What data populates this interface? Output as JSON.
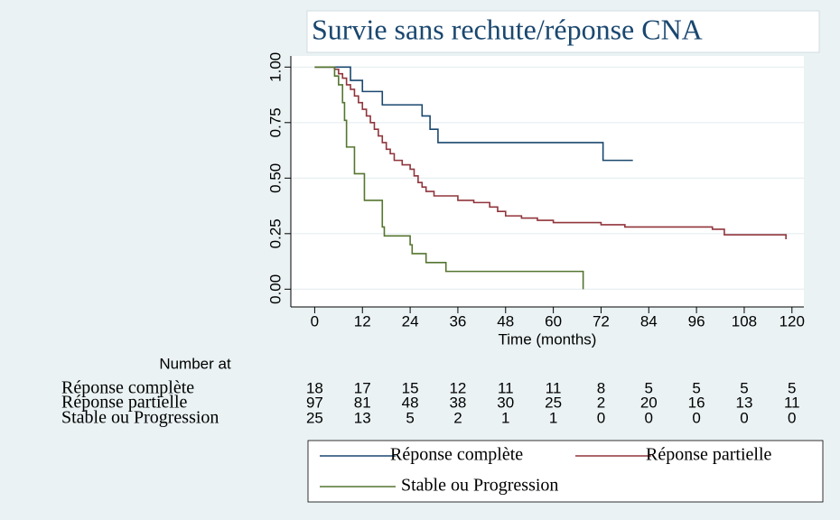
{
  "chart_data": {
    "type": "step",
    "title": "Survie sans rechute/réponse CNA",
    "xlabel": "Time (months)",
    "xlim": [
      -6,
      123
    ],
    "ylim": [
      -0.08,
      1.05
    ],
    "xticks": [
      0,
      12,
      24,
      36,
      48,
      60,
      72,
      84,
      96,
      108,
      120
    ],
    "yticks": [
      {
        "value": 0,
        "label": "0.00"
      },
      {
        "value": 0.25,
        "label": "0.25"
      },
      {
        "value": 0.5,
        "label": "0.50"
      },
      {
        "value": 0.75,
        "label": "0.75"
      },
      {
        "value": 1,
        "label": "1.00"
      }
    ],
    "grid": true,
    "series": [
      {
        "name": "Réponse complète",
        "color": "#1a476f",
        "x": [
          0,
          9,
          12,
          17,
          27,
          29,
          31,
          72.5,
          80
        ],
        "values": [
          1,
          0.94,
          0.89,
          0.83,
          0.78,
          0.72,
          0.66,
          0.58,
          0.58
        ]
      },
      {
        "name": "Réponse partielle",
        "color": "#90353b",
        "x": [
          0,
          5,
          6,
          7,
          8,
          9,
          10,
          11,
          12,
          13,
          14,
          15,
          16,
          17,
          18,
          19,
          20,
          22,
          24,
          25,
          26,
          27,
          28,
          30,
          36,
          40,
          44,
          46,
          48,
          52,
          56,
          60,
          72,
          78,
          100,
          103,
          118.5
        ],
        "values": [
          1,
          0.99,
          0.97,
          0.95,
          0.92,
          0.9,
          0.87,
          0.84,
          0.81,
          0.78,
          0.75,
          0.72,
          0.69,
          0.66,
          0.63,
          0.61,
          0.58,
          0.56,
          0.54,
          0.51,
          0.48,
          0.46,
          0.44,
          0.42,
          0.4,
          0.39,
          0.37,
          0.35,
          0.33,
          0.32,
          0.31,
          0.3,
          0.29,
          0.28,
          0.27,
          0.245,
          0.225
        ]
      },
      {
        "name": "Stable ou Progression",
        "color": "#55752f",
        "x": [
          0,
          5,
          6,
          7,
          7.5,
          8,
          10,
          12.5,
          17,
          17.5,
          24,
          24.5,
          28,
          33,
          67.5
        ],
        "values": [
          1,
          0.96,
          0.92,
          0.84,
          0.76,
          0.64,
          0.52,
          0.4,
          0.28,
          0.24,
          0.2,
          0.16,
          0.12,
          0.08,
          0
        ]
      }
    ],
    "risk_table": {
      "title": "Number at",
      "rows": [
        {
          "name": "Réponse complète",
          "values": [
            18,
            17,
            15,
            12,
            11,
            11,
            8,
            5,
            5,
            5,
            5
          ]
        },
        {
          "name": "Réponse  partielle",
          "values": [
            97,
            81,
            48,
            38,
            30,
            25,
            2,
            20,
            16,
            13,
            11
          ]
        },
        {
          "name": "Stable ou Progression",
          "values": [
            25,
            13,
            5,
            2,
            1,
            1,
            0,
            0,
            0,
            0,
            0
          ]
        }
      ]
    }
  }
}
